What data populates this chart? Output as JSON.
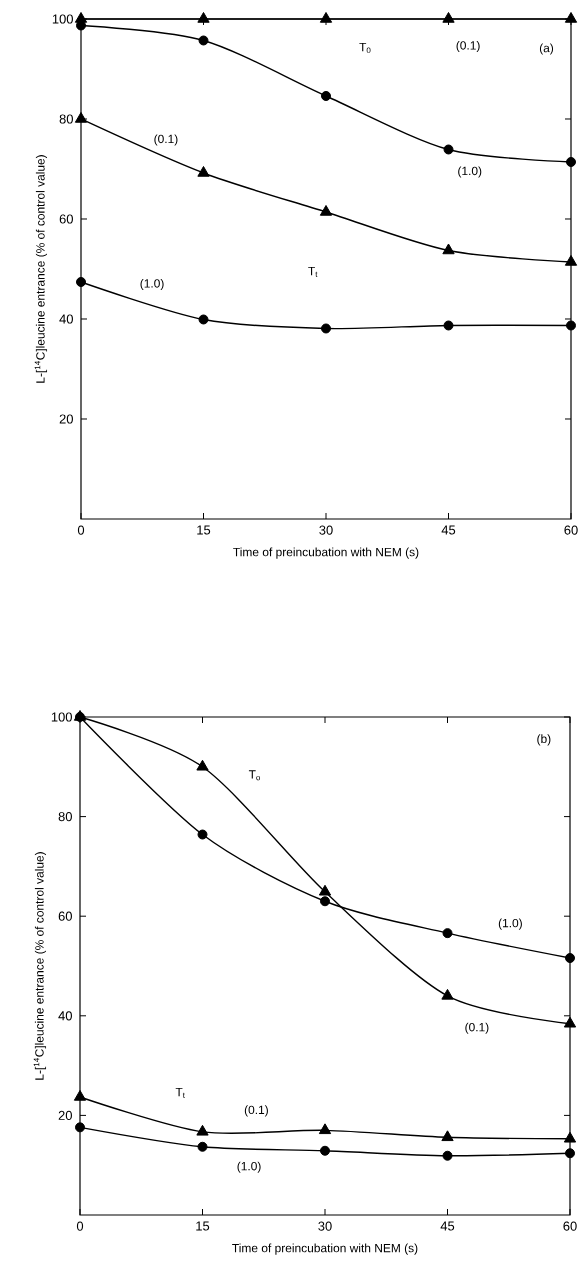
{
  "chart_data": [
    {
      "type": "line",
      "xlabel": "Time of preincubation with NEM (s)",
      "ylabel": "L-[$^{14}$C]leucine entrance (% of control value)",
      "x": [
        0,
        15,
        30,
        45,
        60
      ],
      "xlim": [
        0,
        60
      ],
      "ylim": [
        0,
        100
      ],
      "xticks": [
        0,
        15,
        30,
        45,
        60
      ],
      "yticks": [
        20,
        40,
        60,
        80,
        100
      ],
      "grid": false,
      "line_style": "solid",
      "series": [
        {
          "color": "#000000",
          "marker": "triangle",
          "values": [
            100,
            100,
            100,
            100,
            100
          ]
        },
        {
          "color": "#000000",
          "marker": "circle",
          "values": [
            98.7,
            95.7,
            84.6,
            73.9,
            71.4
          ]
        },
        {
          "color": "#000000",
          "marker": "triangle",
          "values": [
            80,
            69.2,
            61.4,
            53.7,
            51.4
          ]
        },
        {
          "color": "#000000",
          "marker": "circle",
          "values": [
            47.4,
            39.9,
            38.1,
            38.7,
            38.7
          ]
        }
      ],
      "annotations": [
        {
          "text": "(a)",
          "x": 57,
          "y": 94
        },
        {
          "text": "(0.1)",
          "x": 47.4,
          "y": 94.5
        },
        {
          "text": "T$_{0}$",
          "x": 34.8,
          "y": 94.2
        },
        {
          "text": "(1.0)",
          "x": 47.6,
          "y": 69.4
        },
        {
          "text": "(0.1)",
          "x": 10.4,
          "y": 75.8
        },
        {
          "text": "T$_{t}$",
          "x": 28.4,
          "y": 49.4
        },
        {
          "text": "(1.0)",
          "x": 8.7,
          "y": 46.9
        }
      ]
    },
    {
      "type": "line",
      "xlabel": "Time of preincubation with NEM (s)",
      "ylabel": "L-[$^{14}$C]leucine entrance (% of control value)",
      "x": [
        0,
        15,
        30,
        45,
        60
      ],
      "xlim": [
        0,
        60
      ],
      "ylim": [
        0,
        100
      ],
      "xticks": [
        0,
        15,
        30,
        45,
        60
      ],
      "yticks": [
        20,
        40,
        60,
        80,
        100
      ],
      "grid": false,
      "line_style": "solid",
      "series": [
        {
          "color": "#000000",
          "marker": "circle",
          "values": [
            100,
            76.4,
            63.0,
            56.6,
            51.6
          ]
        },
        {
          "color": "#000000",
          "marker": "triangle",
          "values": [
            100,
            90,
            64.9,
            44.0,
            38.4
          ]
        },
        {
          "color": "#000000",
          "marker": "triangle",
          "values": [
            23.7,
            16.7,
            17.0,
            15.6,
            15.3
          ]
        },
        {
          "color": "#000000",
          "marker": "circle",
          "values": [
            17.6,
            13.7,
            12.9,
            11.9,
            12.4
          ]
        }
      ],
      "annotations": [
        {
          "text": "(b)",
          "x": 56.8,
          "y": 95.4
        },
        {
          "text": "T$_{o}$",
          "x": 21.4,
          "y": 88.3
        },
        {
          "text": "(1.0)",
          "x": 52.7,
          "y": 58.4
        },
        {
          "text": "(0.1)",
          "x": 48.6,
          "y": 37.5
        },
        {
          "text": "T$_{t}$",
          "x": 12.3,
          "y": 24.5
        },
        {
          "text": "(0.1)",
          "x": 21.6,
          "y": 20.9
        },
        {
          "text": "(1.0)",
          "x": 20.7,
          "y": 9.6
        }
      ]
    }
  ]
}
